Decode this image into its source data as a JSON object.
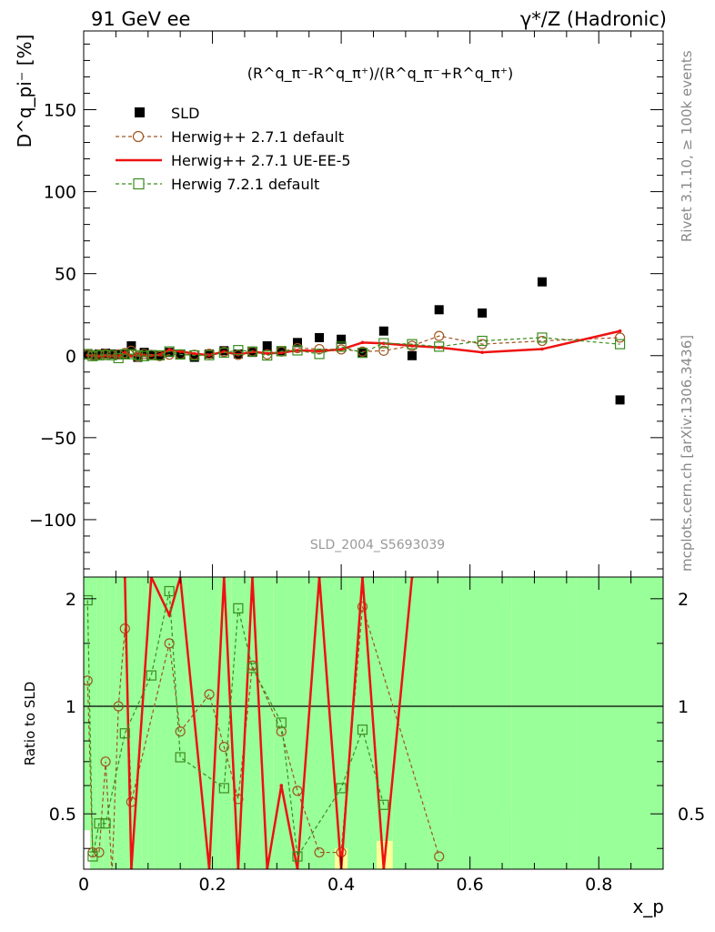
{
  "header": {
    "left_title": "91 GeV ee",
    "right_title": "γ*/Z (Hadronic)",
    "side_label_rivet": "Rivet 3.1.10, ≥ 100k events",
    "side_label_mcplots": "mcplots.cern.ch [arXiv:1306.3436]",
    "analysis_id": "SLD_2004_S5693039"
  },
  "colors": {
    "sld": "#000000",
    "herwigpp_default": "#a0541e",
    "herwigpp_ueee5": "#ee1111",
    "herwig72_default": "#3a8c1e",
    "band_green": "#99ff99",
    "band_yellow": "#ffff99"
  },
  "chart_data": [
    {
      "type": "scatter",
      "panel": "main",
      "title": "(R^q_π⁻-R^q_π⁺)/(R^q_π⁻+R^q_π⁺)",
      "ylabel": "D^q_pi⁻ [%]",
      "xlabel": "x_p",
      "xlim": [
        0,
        0.9
      ],
      "ylim": [
        -135,
        198
      ],
      "x_ticks": [
        0,
        0.2,
        0.4,
        0.6,
        0.8
      ],
      "y_ticks": [
        -100,
        -50,
        0,
        50,
        100,
        150
      ],
      "legend": "top-left",
      "series": [
        {
          "name": "SLD",
          "style": "markers-square",
          "x": [
            0.006,
            0.014,
            0.024,
            0.034,
            0.044,
            0.054,
            0.064,
            0.074,
            0.084,
            0.094,
            0.105,
            0.118,
            0.133,
            0.15,
            0.172,
            0.195,
            0.218,
            0.24,
            0.262,
            0.285,
            0.307,
            0.332,
            0.366,
            0.4,
            0.433,
            0.466,
            0.51,
            0.552,
            0.619,
            0.712,
            0.833
          ],
          "y": [
            0.5,
            0.5,
            1,
            1.5,
            1,
            0.5,
            1,
            6,
            -1,
            2,
            0.5,
            0,
            2,
            1,
            -1,
            1,
            3,
            1,
            2,
            6,
            3,
            8,
            11,
            10,
            2,
            15,
            0,
            28,
            26,
            45,
            -27
          ]
        },
        {
          "name": "Herwig++ 2.7.1 default",
          "style": "dashed-circle",
          "x": [
            0.006,
            0.014,
            0.024,
            0.034,
            0.044,
            0.054,
            0.064,
            0.074,
            0.084,
            0.094,
            0.105,
            0.118,
            0.133,
            0.15,
            0.172,
            0.195,
            0.218,
            0.24,
            0.262,
            0.285,
            0.307,
            0.332,
            0.366,
            0.4,
            0.433,
            0.466,
            0.51,
            0.552,
            0.619,
            0.712,
            0.833
          ],
          "y": [
            0.6,
            0.2,
            0.7,
            1.1,
            0.3,
            0.8,
            1.6,
            3,
            -0.5,
            1,
            0.5,
            -0.3,
            0.6,
            0.8,
            0.5,
            1.1,
            2.3,
            0.5,
            2.6,
            0.8,
            2.5,
            4.6,
            4,
            3.8,
            2.5,
            3,
            6,
            12,
            7,
            9,
            11
          ]
        },
        {
          "name": "Herwig++ 2.7.1 UE-EE-5",
          "style": "solid-line",
          "x": [
            0.006,
            0.014,
            0.024,
            0.034,
            0.044,
            0.054,
            0.064,
            0.074,
            0.084,
            0.094,
            0.105,
            0.118,
            0.133,
            0.15,
            0.172,
            0.195,
            0.218,
            0.24,
            0.262,
            0.285,
            0.307,
            0.332,
            0.366,
            0.4,
            0.433,
            0.466,
            0.51,
            0.552,
            0.619,
            0.712,
            0.833
          ],
          "y": [
            0.3,
            0.1,
            -0.3,
            0.1,
            -0.2,
            -0.3,
            2,
            -0.3,
            0.8,
            0.2,
            0.1,
            0.5,
            3.6,
            2.6,
            1.2,
            0.3,
            2.4,
            0.6,
            2.4,
            1.3,
            1.8,
            3.2,
            2.8,
            3.8,
            8,
            7.5,
            6,
            5,
            2,
            4,
            15
          ]
        },
        {
          "name": "Herwig 7.2.1 default",
          "style": "dashed-square",
          "x": [
            0.006,
            0.014,
            0.024,
            0.034,
            0.044,
            0.054,
            0.064,
            0.074,
            0.084,
            0.094,
            0.105,
            0.118,
            0.133,
            0.15,
            0.172,
            0.195,
            0.218,
            0.24,
            0.262,
            0.285,
            0.307,
            0.332,
            0.366,
            0.4,
            0.433,
            0.466,
            0.51,
            0.552,
            0.619,
            0.712,
            0.833
          ],
          "y": [
            1,
            -0.3,
            0.2,
            0.4,
            0.3,
            -1.5,
            0.8,
            0.9,
            0.3,
            -0.3,
            0.3,
            0.2,
            2.6,
            0.7,
            0.2,
            0.3,
            1.8,
            3.4,
            2.5,
            0.1,
            2.7,
            3.2,
            1,
            5.5,
            1.7,
            7.6,
            7,
            5.5,
            9,
            11,
            7
          ]
        }
      ]
    },
    {
      "type": "line",
      "panel": "ratio",
      "ylabel": "Ratio to SLD",
      "xlabel": "x_p",
      "xlim": [
        0,
        0.9
      ],
      "ylim": [
        0.35,
        2.3
      ],
      "y_ticks": [
        0.5,
        1,
        2
      ],
      "reference_line": 1,
      "bands": {
        "edges": [
          0,
          0.01,
          0.02,
          0.03,
          0.04,
          0.05,
          0.06,
          0.07,
          0.08,
          0.09,
          0.1,
          0.11,
          0.125,
          0.14,
          0.16,
          0.185,
          0.21,
          0.23,
          0.25,
          0.275,
          0.295,
          0.32,
          0.345,
          0.39,
          0.41,
          0.455,
          0.48,
          0.535,
          0.57,
          0.665,
          0.765,
          0.9
        ],
        "yellow_low": [
          0.45,
          0.35,
          0.35,
          0.35,
          0.35,
          0.35,
          0.35,
          0.35,
          0.35,
          0.35,
          0.35,
          0.35,
          0.35,
          0.35,
          0.35,
          0.35,
          0.35,
          0.35,
          0.35,
          0.35,
          0.35,
          0.35,
          0.35,
          0.35,
          0.35,
          0.35,
          0.35,
          0.61,
          0.5,
          0.5,
          0.35
        ],
        "yellow_high": [
          2.3,
          2.3,
          2.3,
          2.2,
          2.0,
          2.3,
          2.1,
          2.3,
          2.1,
          2.3,
          2.3,
          2.3,
          2.3,
          2.1,
          2.3,
          2.3,
          2.3,
          2.3,
          2.3,
          2.3,
          2.25,
          2.1,
          2.0,
          2.05,
          2.3,
          2.3,
          2.3,
          1.93,
          1.92,
          1.9,
          2.3
        ],
        "green_low": [
          0.45,
          0.35,
          0.35,
          0.35,
          0.35,
          0.35,
          0.35,
          0.35,
          0.35,
          0.35,
          0.35,
          0.35,
          0.35,
          0.35,
          0.35,
          0.35,
          0.35,
          0.35,
          0.35,
          0.35,
          0.35,
          0.35,
          0.35,
          0.4,
          0.35,
          0.42,
          0.35,
          0.35,
          0.35,
          0.35,
          0.35
        ],
        "green_high": [
          2.3,
          2.3,
          2.3,
          2.3,
          2.3,
          2.3,
          2.3,
          2.3,
          2.3,
          2.3,
          2.3,
          2.3,
          2.3,
          2.3,
          2.3,
          2.3,
          2.3,
          2.3,
          2.3,
          2.3,
          2.3,
          2.3,
          2.3,
          2.3,
          2.3,
          2.3,
          2.3,
          2.3,
          2.3,
          2.3,
          2.3
        ]
      },
      "series": [
        {
          "name": "Herwig++ 2.7.1 default",
          "style": "dashed-circle",
          "x": [
            0.006,
            0.014,
            0.024,
            0.034,
            0.044,
            0.054,
            0.064,
            0.074,
            0.133,
            0.15,
            0.195,
            0.218,
            0.24,
            0.262,
            0.307,
            0.332,
            0.366,
            0.4,
            0.433,
            0.552
          ],
          "y": [
            1.18,
            0.39,
            0.39,
            0.7,
            0.34,
            1.0,
            1.65,
            0.54,
            1.5,
            0.85,
            1.08,
            0.77,
            0.55,
            1.3,
            0.85,
            0.58,
            0.39,
            0.39,
            1.9,
            0.38
          ]
        },
        {
          "name": "Herwig++ 2.7.1 UE-EE-5",
          "style": "solid-line",
          "x": [
            0.064,
            0.074,
            0.105,
            0.133,
            0.15,
            0.195,
            0.218,
            0.24,
            0.262,
            0.285,
            0.307,
            0.332,
            0.366,
            0.4,
            0.433,
            0.466,
            0.51
          ],
          "y": [
            2.3,
            0.35,
            2.3,
            1.8,
            2.3,
            0.35,
            2.3,
            0.35,
            2.3,
            0.35,
            0.6,
            0.35,
            2.3,
            0.35,
            2.3,
            0.35,
            2.3
          ]
        },
        {
          "name": "Herwig 7.2.1 default",
          "style": "dashed-square",
          "x": [
            0.006,
            0.014,
            0.024,
            0.034,
            0.064,
            0.105,
            0.133,
            0.15,
            0.218,
            0.24,
            0.262,
            0.307,
            0.332,
            0.4,
            0.433,
            0.466
          ],
          "y": [
            1.98,
            0.38,
            0.47,
            0.47,
            0.84,
            1.22,
            2.1,
            0.72,
            0.59,
            1.88,
            1.28,
            0.9,
            0.38,
            0.59,
            0.86,
            0.53
          ]
        }
      ]
    }
  ]
}
